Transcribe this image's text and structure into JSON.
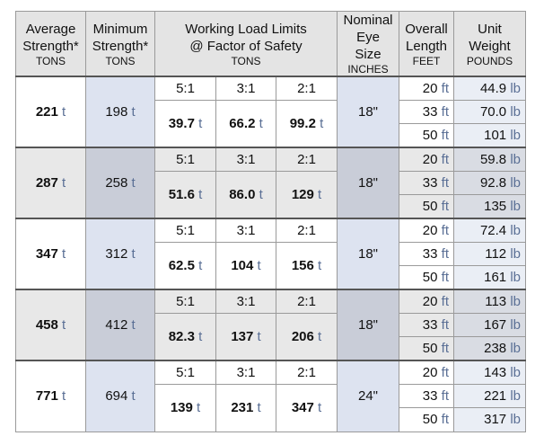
{
  "header": [
    {
      "lines": [
        "Average",
        "Strength*"
      ],
      "unit": "TONS"
    },
    {
      "lines": [
        "Minimum",
        "Strength*"
      ],
      "unit": "TONS"
    },
    {
      "lines": [
        "Working Load Limits",
        "@ Factor of Safety"
      ],
      "unit": "TONS"
    },
    {
      "lines": [
        "Nominal",
        "Eye Size"
      ],
      "unit": "INCHES"
    },
    {
      "lines": [
        "Overall",
        "Length"
      ],
      "unit": "FEET"
    },
    {
      "lines": [
        "Unit",
        "Weight"
      ],
      "unit": "POUNDS"
    }
  ],
  "ratios": [
    "5:1",
    "3:1",
    "2:1"
  ],
  "units": {
    "tons": "t",
    "feet": "ft",
    "pounds": "lb"
  },
  "groups": [
    {
      "average": "221",
      "minimum": "198",
      "wll": [
        "39.7",
        "66.2",
        "99.2"
      ],
      "eye": "18\"",
      "lengths": [
        "20",
        "33",
        "50"
      ],
      "weights": [
        "44.9",
        "70.0",
        "101"
      ]
    },
    {
      "average": "287",
      "minimum": "258",
      "wll": [
        "51.6",
        "86.0",
        "129"
      ],
      "eye": "18\"",
      "lengths": [
        "20",
        "33",
        "50"
      ],
      "weights": [
        "59.8",
        "92.8",
        "135"
      ]
    },
    {
      "average": "347",
      "minimum": "312",
      "wll": [
        "62.5",
        "104",
        "156"
      ],
      "eye": "18\"",
      "lengths": [
        "20",
        "33",
        "50"
      ],
      "weights": [
        "72.4",
        "112",
        "161"
      ]
    },
    {
      "average": "458",
      "minimum": "412",
      "wll": [
        "82.3",
        "137",
        "206"
      ],
      "eye": "18\"",
      "lengths": [
        "20",
        "33",
        "50"
      ],
      "weights": [
        "113",
        "167",
        "238"
      ]
    },
    {
      "average": "771",
      "minimum": "694",
      "wll": [
        "139",
        "231",
        "347"
      ],
      "eye": "24\"",
      "lengths": [
        "20",
        "33",
        "50"
      ],
      "weights": [
        "143",
        "221",
        "317"
      ]
    }
  ]
}
